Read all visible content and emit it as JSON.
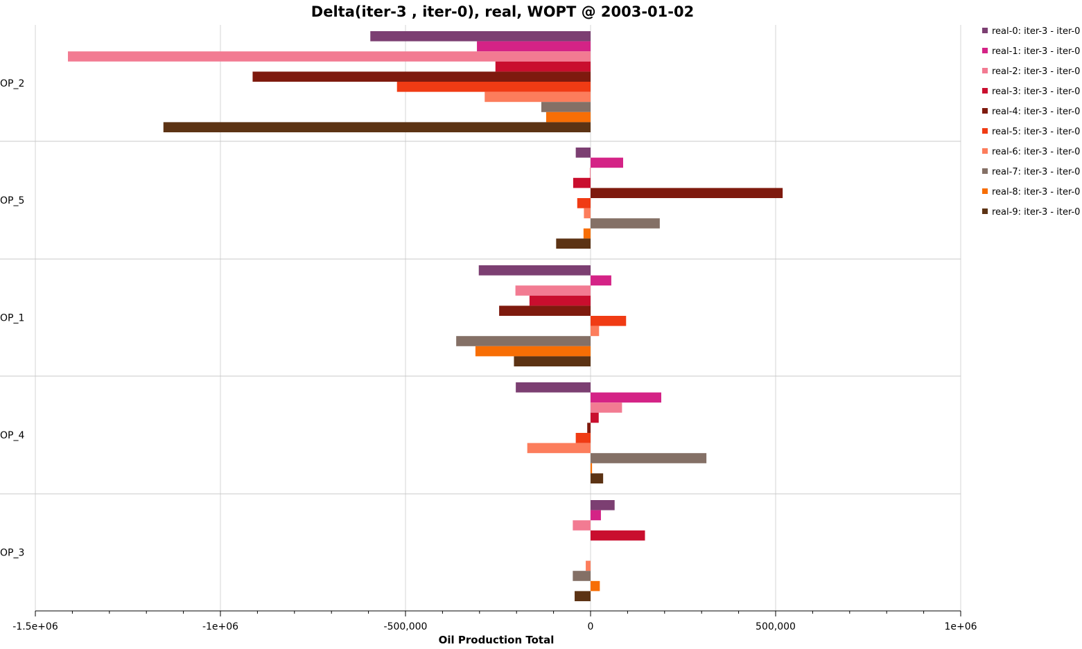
{
  "chart_data": {
    "type": "bar",
    "orientation": "horizontal",
    "title": "Delta(iter-3 , iter-0), real, WOPT @ 2003-01-02",
    "xlabel": "Oil Production Total",
    "ylabel": "",
    "xlim": [
      -1500000,
      1000000
    ],
    "x_ticks": [
      -1500000,
      -1000000,
      -500000,
      0,
      500000,
      1000000
    ],
    "x_tick_labels": [
      "-1.5e+06",
      "-1e+06",
      "-500,000",
      "0",
      "500,000",
      "1e+06"
    ],
    "grid": true,
    "legend_position": "right",
    "categories": [
      "OP_2",
      "OP_5",
      "OP_1",
      "OP_4",
      "OP_3"
    ],
    "series": [
      {
        "name": "real-0: iter-3 - iter-0",
        "color": "#7c3f72",
        "values": [
          -595000,
          -40000,
          -302000,
          -202000,
          65000
        ]
      },
      {
        "name": "real-1: iter-3 - iter-0",
        "color": "#d42386",
        "values": [
          -307000,
          88000,
          56000,
          191000,
          28000
        ]
      },
      {
        "name": "real-2: iter-3 - iter-0",
        "color": "#f27b92",
        "values": [
          -1412000,
          -2000,
          -203000,
          85000,
          -48000
        ]
      },
      {
        "name": "real-3: iter-3 - iter-0",
        "color": "#c90e2e",
        "values": [
          -257000,
          -47000,
          -165000,
          22000,
          147000
        ]
      },
      {
        "name": "real-4: iter-3 - iter-0",
        "color": "#7e1a0e",
        "values": [
          -913000,
          519000,
          -247000,
          -9000,
          0
        ]
      },
      {
        "name": "real-5: iter-3 - iter-0",
        "color": "#f03b14",
        "values": [
          -523000,
          -36000,
          96000,
          -40000,
          0
        ]
      },
      {
        "name": "real-6: iter-3 - iter-0",
        "color": "#fc7d5c",
        "values": [
          -286000,
          -18000,
          23000,
          -171000,
          -13000
        ]
      },
      {
        "name": "real-7: iter-3 - iter-0",
        "color": "#847066",
        "values": [
          -133000,
          187000,
          -363000,
          313000,
          -48000
        ]
      },
      {
        "name": "real-8: iter-3 - iter-0",
        "color": "#f76e05",
        "values": [
          -120000,
          -19000,
          -311000,
          4000,
          25000
        ]
      },
      {
        "name": "real-9: iter-3 - iter-0",
        "color": "#5c3314",
        "values": [
          -1154000,
          -93000,
          -207000,
          34000,
          -43000
        ]
      }
    ]
  }
}
